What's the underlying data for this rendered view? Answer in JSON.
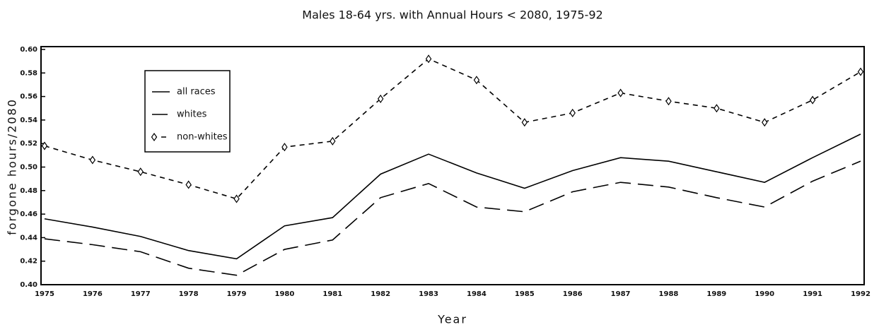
{
  "chart_data": {
    "type": "line",
    "title": "Males 18-64 yrs. with Annual Hours < 2080, 1975-92",
    "x_label": "Year",
    "y_label": "forgone hours/2080",
    "categories": [
      "1975",
      "1976",
      "1977",
      "1978",
      "1979",
      "1980",
      "1981",
      "1982",
      "1983",
      "1984",
      "1985",
      "1986",
      "1987",
      "1988",
      "1989",
      "1990",
      "1991",
      "1992"
    ],
    "ylim": [
      0.4,
      0.6
    ],
    "yticks": [
      {
        "value": 0.4,
        "label": "0.40"
      },
      {
        "value": 0.42,
        "label": "0.42"
      },
      {
        "value": 0.44,
        "label": "0.44"
      },
      {
        "value": 0.46,
        "label": "0.46"
      },
      {
        "value": 0.48,
        "label": "0.48"
      },
      {
        "value": 0.5,
        "label": "0.50"
      },
      {
        "value": 0.52,
        "label": "0.52"
      },
      {
        "value": 0.54,
        "label": "0.54"
      },
      {
        "value": 0.56,
        "label": "0.56"
      },
      {
        "value": 0.58,
        "label": "0.58"
      },
      {
        "value": 0.6,
        "label": "0.60"
      }
    ],
    "series": [
      {
        "name": "all races",
        "color": "#000000",
        "dash": "solid",
        "marker": "none",
        "values": [
          0.456,
          0.449,
          0.441,
          0.429,
          0.422,
          0.45,
          0.457,
          0.494,
          0.511,
          0.495,
          0.482,
          0.497,
          0.508,
          0.505,
          0.496,
          0.487,
          0.508,
          0.528
        ]
      },
      {
        "name": "whites",
        "color": "#000000",
        "dash": "long",
        "marker": "none",
        "values": [
          0.439,
          0.434,
          0.428,
          0.414,
          0.408,
          0.43,
          0.438,
          0.474,
          0.486,
          0.466,
          0.462,
          0.479,
          0.487,
          0.483,
          0.474,
          0.466,
          0.488,
          0.505
        ]
      },
      {
        "name": "non-whites",
        "color": "#000000",
        "dash": "short",
        "marker": "diamond",
        "values": [
          0.518,
          0.506,
          0.496,
          0.485,
          0.473,
          0.517,
          0.522,
          0.558,
          0.592,
          0.574,
          0.538,
          0.546,
          0.563,
          0.556,
          0.55,
          0.538,
          0.557,
          0.581
        ]
      }
    ]
  }
}
